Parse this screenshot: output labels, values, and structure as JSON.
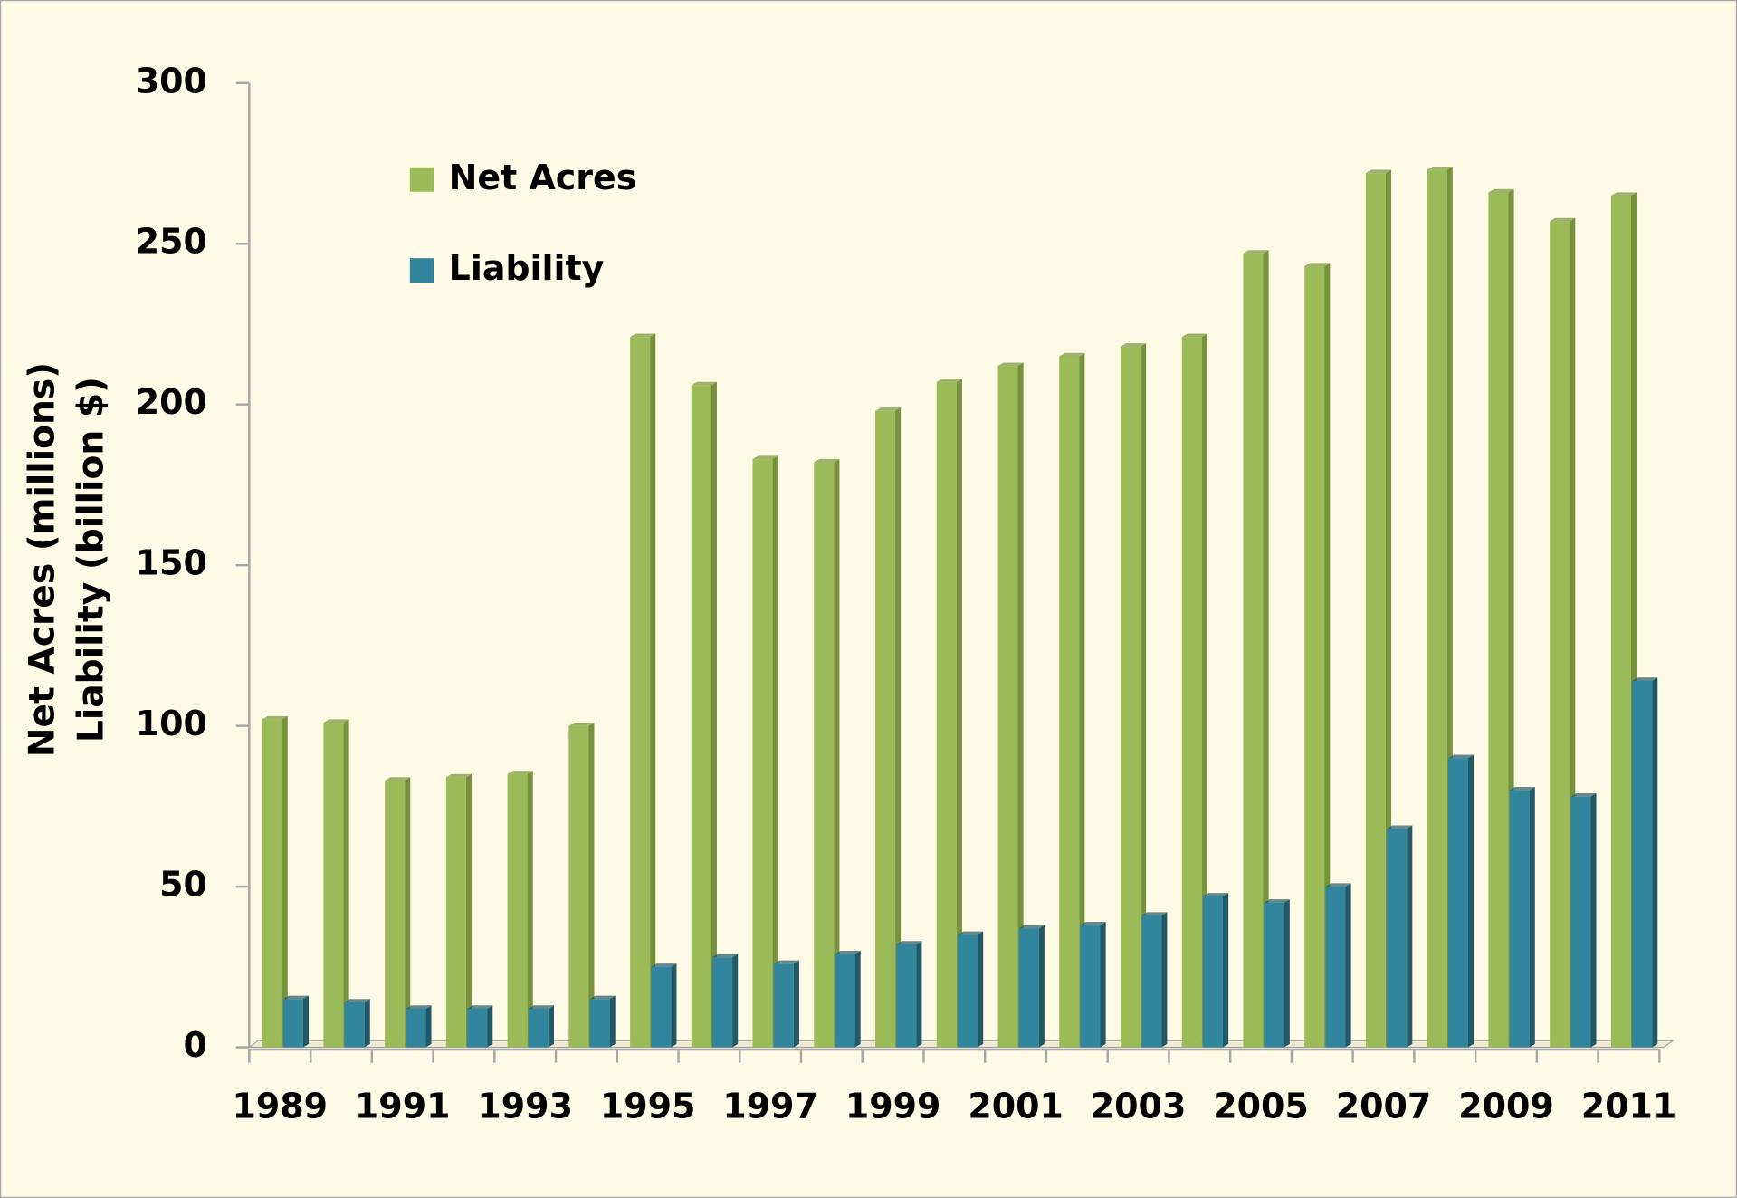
{
  "chart_data": {
    "type": "bar",
    "ylabel": [
      "Net Acres (millions)",
      "Liability (billion  $)"
    ],
    "categories": [
      "1989",
      null,
      "1991",
      null,
      "1993",
      null,
      "1995",
      null,
      "1997",
      null,
      "1999",
      null,
      "2001",
      null,
      "2003",
      null,
      "2005",
      null,
      "2007",
      null,
      "2009",
      null,
      "2011"
    ],
    "series": [
      {
        "name": "Net Acres",
        "color": "#9bbb59",
        "values": [
          102,
          101,
          83,
          84,
          85,
          100,
          221,
          206,
          183,
          182,
          198,
          207,
          212,
          215,
          218,
          221,
          247,
          243,
          272,
          273,
          266,
          257,
          265
        ]
      },
      {
        "name": "Liability",
        "color": "#31859c",
        "values": [
          15,
          14,
          12,
          12,
          12,
          15,
          25,
          28,
          26,
          29,
          32,
          35,
          37,
          38,
          41,
          47,
          45,
          50,
          68,
          90,
          80,
          78,
          114
        ]
      }
    ],
    "ylim": [
      0,
      300
    ],
    "yticks": [
      0,
      50,
      100,
      150,
      200,
      250,
      300
    ],
    "legend": "upper left"
  }
}
